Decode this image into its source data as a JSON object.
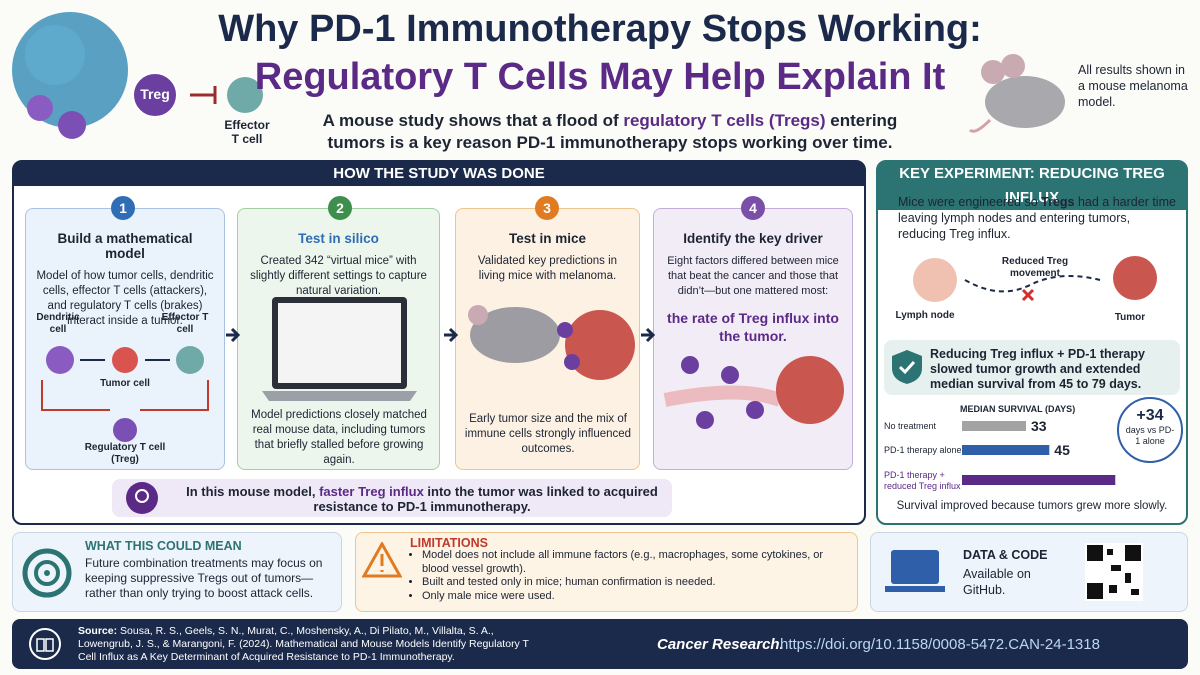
{
  "header": {
    "title_line1": "Why PD-1 Immunotherapy Stops Working:",
    "title_line2": "Regulatory T Cells May Help Explain It",
    "subtitle": [
      "A mouse study shows that a flood of ",
      "regulatory T cells (Tregs)",
      " entering tumors is a key reason PD-1 immunotherapy stops working over time."
    ],
    "treg_label": "Treg",
    "effector_label": "Effector T cell",
    "mouse_note": "All results shown in a mouse melanoma model."
  },
  "study": {
    "heading": "HOW THE STUDY WAS DONE",
    "steps": [
      {
        "number": 1,
        "title": "Build a mathematical model",
        "text": "Model of how tumor cells, dendritic cells, effector T cells (attackers), and regulatory T cells (brakes) interact inside a tumor.",
        "labels": [
          "Dendritic cell",
          "Effector T cell",
          "Tumor cell",
          "Regulatory T cell (Treg)"
        ]
      },
      {
        "number": 2,
        "title": "Test in silico",
        "text": "Created 342 “virtual mice” with slightly different settings to capture natural variation.",
        "footer": "Model predictions closely matched real mouse data, including tumors that briefly stalled before growing again."
      },
      {
        "number": 3,
        "title": "Test in mice",
        "text": "Validated key predictions in living mice with melanoma.",
        "footer": "Early tumor size and the mix of immune cells strongly influenced outcomes."
      },
      {
        "number": 4,
        "title": "Identify the key driver",
        "text": "Eight factors differed between mice that beat the cancer and those that didn’t—but one mattered most:",
        "highlight": "the rate of Treg influx into the tumor."
      }
    ],
    "callout": [
      "In this mouse model, ",
      "faster Treg influx",
      " into the tumor was linked to acquired resistance to PD-1 immunotherapy."
    ]
  },
  "key_experiment": {
    "heading": "KEY EXPERIMENT: REDUCING TREG INFLUX",
    "intro": [
      "Mice were engineered so ",
      "Tregs",
      " had a harder time leaving lymph nodes and entering tumors, reducing Treg influx."
    ],
    "lymph_label": "Lymph node",
    "movement_label": "Reduced Treg movement",
    "tumor_label": "Tumor",
    "result": "Reducing Treg influx + PD-1 therapy slowed tumor growth and extended median survival from 45 to 79 days.",
    "badge_value": "+34",
    "badge_text": "days vs PD-1 alone",
    "footer": "Survival improved because tumors grew more slowly."
  },
  "chart_data": {
    "type": "bar",
    "orientation": "horizontal",
    "title": "MEDIAN SURVIVAL (DAYS)",
    "categories": [
      "No treatment",
      "PD-1 therapy alone",
      "PD-1 therapy + reduced Treg influx"
    ],
    "values": [
      33,
      45,
      79
    ],
    "colors": [
      "#a3a3a3",
      "#2f5fa8",
      "#5b2a86"
    ]
  },
  "meaning": {
    "heading": "WHAT THIS COULD MEAN",
    "text": "Future combination treatments may focus on keeping suppressive Tregs out of tumors—rather than only trying to boost attack cells."
  },
  "limitations": {
    "heading": "LIMITATIONS",
    "items": [
      "Model does not include all immune factors (e.g., macrophages, some cytokines, or blood vessel growth).",
      "Built and tested only in mice; human confirmation is needed.",
      "Only male mice were used."
    ]
  },
  "data_code": {
    "heading": "DATA & CODE",
    "text": "Available on GitHub."
  },
  "source": {
    "label": "Source:",
    "citation": "Sousa, R. S., Geels, S. N., Murat, C., Moshensky, A., Di Pilato, M., Villalta, S. A., Lowengrub, J. S., & Marangoni, F. (2024). Mathematical and Mouse Models Identify Regulatory T Cell Influx as A Key Determinant of Acquired Resistance to PD-1 Immunotherapy.",
    "journal": "Cancer Research.",
    "doi": "https://doi.org/10.1158/0008-5472.CAN-24-1318"
  }
}
